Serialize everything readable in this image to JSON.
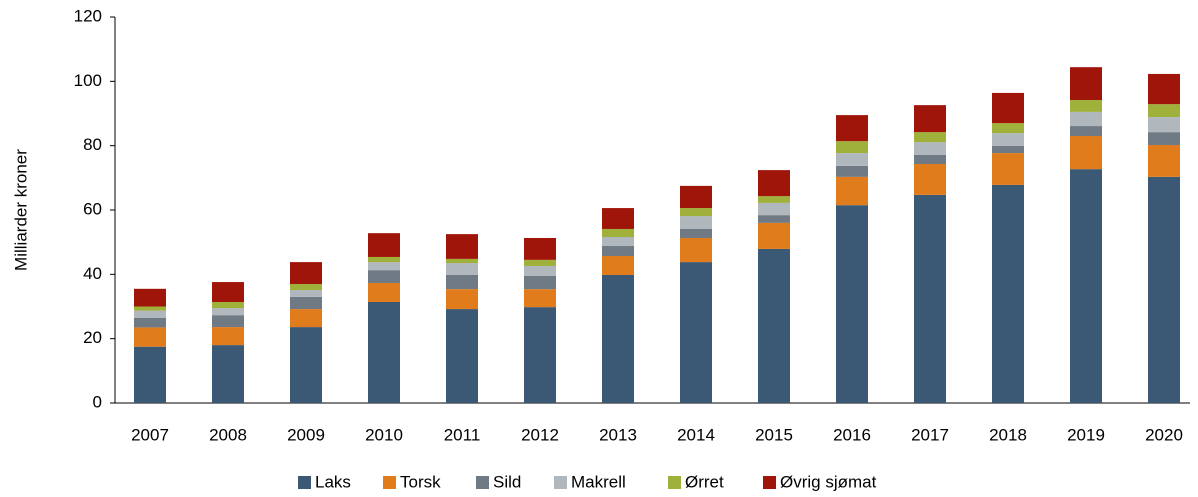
{
  "chart_data": {
    "type": "stacked_bar",
    "y_label": "Milliarder kroner",
    "categories": [
      "2007",
      "2008",
      "2009",
      "2010",
      "2011",
      "2012",
      "2013",
      "2014",
      "2015",
      "2016",
      "2017",
      "2018",
      "2019",
      "2020"
    ],
    "series": [
      {
        "name": "Laks",
        "color": "#3b5875",
        "values": [
          17.5,
          18,
          23.6,
          31.4,
          29.2,
          29.8,
          39.8,
          43.8,
          47.9,
          61.5,
          64.7,
          67.8,
          72.7,
          70.3
        ]
      },
      {
        "name": "Torsk",
        "color": "#e07c1c",
        "values": [
          6,
          5.6,
          5.6,
          5.9,
          6.2,
          5.6,
          5.9,
          7.5,
          8.1,
          8.8,
          9.6,
          9.9,
          10.3,
          9.9
        ]
      },
      {
        "name": "Sild",
        "color": "#6f7a84",
        "values": [
          3,
          3.7,
          3.8,
          4,
          4.4,
          4.1,
          3.1,
          2.8,
          2.4,
          3.4,
          2.8,
          2.2,
          3.1,
          4
        ]
      },
      {
        "name": "Makrell",
        "color": "#b0b7bd",
        "values": [
          2.2,
          2.2,
          2.1,
          2.5,
          3.7,
          3.1,
          2.8,
          4,
          3.8,
          4,
          4,
          4,
          4.4,
          4.7
        ]
      },
      {
        "name": "Ørret",
        "color": "#a0b13b",
        "values": [
          1.3,
          1.9,
          1.9,
          1.6,
          1.3,
          1.9,
          2.5,
          2.5,
          2.1,
          3.7,
          3.1,
          3.1,
          3.7,
          4
        ]
      },
      {
        "name": "Øvrig sjømat",
        "color": "#a0150a",
        "values": [
          5.5,
          6.2,
          6.8,
          7.4,
          7.7,
          6.8,
          6.5,
          6.9,
          8.1,
          8.1,
          8.4,
          9.4,
          10.2,
          9.4
        ]
      }
    ],
    "ylim": [
      0,
      120
    ],
    "yticks": [
      0,
      20,
      40,
      60,
      80,
      100,
      120
    ],
    "grid": false,
    "legend": "bottom"
  }
}
